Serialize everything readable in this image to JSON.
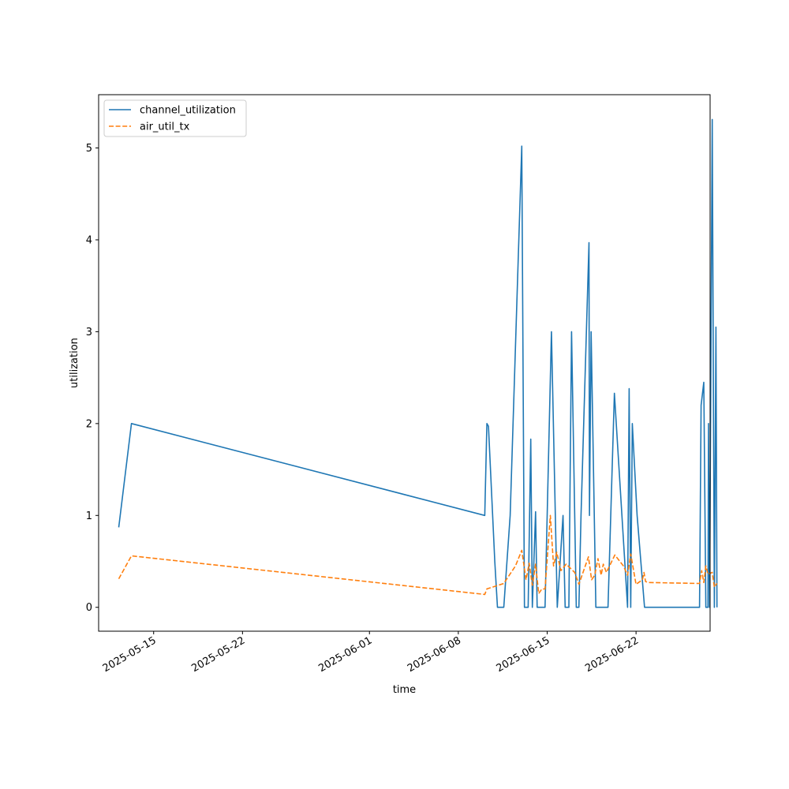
{
  "chart_data": {
    "type": "line",
    "xlabel": "time",
    "ylabel": "utilization",
    "x_scale": "date",
    "xlim": [
      "2025-05-10T16:00",
      "2025-06-27T20:00"
    ],
    "ylim": [
      -0.26,
      5.58
    ],
    "x_ticks": [
      {
        "value": "2025-05-15",
        "label": "2025-05-15"
      },
      {
        "value": "2025-05-22",
        "label": "2025-05-22"
      },
      {
        "value": "2025-06-01",
        "label": "2025-06-01"
      },
      {
        "value": "2025-06-08",
        "label": "2025-06-08"
      },
      {
        "value": "2025-06-15",
        "label": "2025-06-15"
      },
      {
        "value": "2025-06-22",
        "label": "2025-06-22"
      }
    ],
    "y_ticks": [
      0,
      1,
      2,
      3,
      4,
      5
    ],
    "legend": {
      "position": "top-left"
    },
    "grid": false,
    "series": [
      {
        "name": "channel_utilization",
        "color": "#1f77b4",
        "dash": "solid",
        "points": [
          [
            "2025-05-12T06:00",
            0.87
          ],
          [
            "2025-05-13T06:00",
            2.0
          ],
          [
            "2025-06-10T02:00",
            1.0
          ],
          [
            "2025-06-10T06:00",
            2.0
          ],
          [
            "2025-06-10T09:00",
            1.97
          ],
          [
            "2025-06-10T21:00",
            0.5
          ],
          [
            "2025-06-11T02:00",
            0.0
          ],
          [
            "2025-06-11T14:00",
            0.0
          ],
          [
            "2025-06-12T02:00",
            1.0
          ],
          [
            "2025-06-13T00:00",
            5.02
          ],
          [
            "2025-06-13T05:00",
            0.0
          ],
          [
            "2025-06-13T12:00",
            0.0
          ],
          [
            "2025-06-13T17:00",
            1.83
          ],
          [
            "2025-06-13T20:00",
            0.0
          ],
          [
            "2025-06-14T02:00",
            1.04
          ],
          [
            "2025-06-14T05:00",
            0.0
          ],
          [
            "2025-06-14T20:00",
            0.0
          ],
          [
            "2025-06-15T08:00",
            3.0
          ],
          [
            "2025-06-15T19:00",
            0.0
          ],
          [
            "2025-06-16T06:00",
            1.0
          ],
          [
            "2025-06-16T10:00",
            0.0
          ],
          [
            "2025-06-16T17:00",
            0.0
          ],
          [
            "2025-06-16T22:00",
            3.0
          ],
          [
            "2025-06-17T07:00",
            0.0
          ],
          [
            "2025-06-17T12:00",
            0.0
          ],
          [
            "2025-06-17T16:00",
            1.0
          ],
          [
            "2025-06-18T07:00",
            3.97
          ],
          [
            "2025-06-18T08:00",
            1.0
          ],
          [
            "2025-06-18T11:00",
            3.0
          ],
          [
            "2025-06-18T20:00",
            0.0
          ],
          [
            "2025-06-19T19:00",
            0.0
          ],
          [
            "2025-06-20T07:00",
            2.33
          ],
          [
            "2025-06-21T08:00",
            0.0
          ],
          [
            "2025-06-21T11:00",
            2.38
          ],
          [
            "2025-06-21T14:00",
            0.0
          ],
          [
            "2025-06-21T17:00",
            2.0
          ],
          [
            "2025-06-22T02:00",
            1.0
          ],
          [
            "2025-06-22T16:00",
            0.0
          ],
          [
            "2025-06-27T00:00",
            0.0
          ],
          [
            "2025-06-27T03:00",
            2.2
          ],
          [
            "2025-06-27T08:00",
            2.45
          ],
          [
            "2025-06-27T12:00",
            0.0
          ],
          [
            "2025-06-27T16:00",
            0.0
          ],
          [
            "2025-06-27T17:00",
            2.0
          ],
          [
            "2025-06-27T19:00",
            0.0
          ],
          [
            "2025-06-28T00:00",
            5.31
          ],
          [
            "2025-06-28T04:00",
            0.0
          ],
          [
            "2025-06-28T07:00",
            3.05
          ],
          [
            "2025-06-28T09:00",
            0.0
          ]
        ]
      },
      {
        "name": "air_util_tx",
        "color": "#ff7f0e",
        "dash": "dashed",
        "points": [
          [
            "2025-05-12T06:00",
            0.31
          ],
          [
            "2025-05-13T06:00",
            0.56
          ],
          [
            "2025-06-10T02:00",
            0.14
          ],
          [
            "2025-06-10T06:00",
            0.2
          ],
          [
            "2025-06-11T14:00",
            0.26
          ],
          [
            "2025-06-12T12:00",
            0.45
          ],
          [
            "2025-06-13T00:00",
            0.62
          ],
          [
            "2025-06-13T08:00",
            0.3
          ],
          [
            "2025-06-13T14:00",
            0.48
          ],
          [
            "2025-06-13T20:00",
            0.24
          ],
          [
            "2025-06-14T02:00",
            0.47
          ],
          [
            "2025-06-14T08:00",
            0.15
          ],
          [
            "2025-06-14T14:00",
            0.2
          ],
          [
            "2025-06-14T20:00",
            0.2
          ],
          [
            "2025-06-15T06:00",
            1.0
          ],
          [
            "2025-06-15T12:00",
            0.45
          ],
          [
            "2025-06-15T18:00",
            0.6
          ],
          [
            "2025-06-16T02:00",
            0.4
          ],
          [
            "2025-06-16T12:00",
            0.47
          ],
          [
            "2025-06-17T04:00",
            0.38
          ],
          [
            "2025-06-17T12:00",
            0.25
          ],
          [
            "2025-06-18T06:00",
            0.55
          ],
          [
            "2025-06-18T12:00",
            0.3
          ],
          [
            "2025-06-18T18:00",
            0.35
          ],
          [
            "2025-06-19T00:00",
            0.53
          ],
          [
            "2025-06-19T06:00",
            0.35
          ],
          [
            "2025-06-19T10:00",
            0.47
          ],
          [
            "2025-06-19T16:00",
            0.38
          ],
          [
            "2025-06-20T08:00",
            0.57
          ],
          [
            "2025-06-21T00:00",
            0.45
          ],
          [
            "2025-06-21T08:00",
            0.35
          ],
          [
            "2025-06-21T14:00",
            0.58
          ],
          [
            "2025-06-22T00:00",
            0.25
          ],
          [
            "2025-06-22T12:00",
            0.3
          ],
          [
            "2025-06-22T15:00",
            0.38
          ],
          [
            "2025-06-22T18:00",
            0.28
          ],
          [
            "2025-06-23T00:00",
            0.27
          ],
          [
            "2025-06-27T00:00",
            0.26
          ],
          [
            "2025-06-27T04:00",
            0.4
          ],
          [
            "2025-06-27T08:00",
            0.27
          ],
          [
            "2025-06-27T12:00",
            0.45
          ],
          [
            "2025-06-27T16:00",
            0.36
          ],
          [
            "2025-06-28T00:00",
            0.38
          ],
          [
            "2025-06-28T04:00",
            0.22
          ],
          [
            "2025-06-28T09:00",
            0.26
          ]
        ]
      }
    ]
  }
}
